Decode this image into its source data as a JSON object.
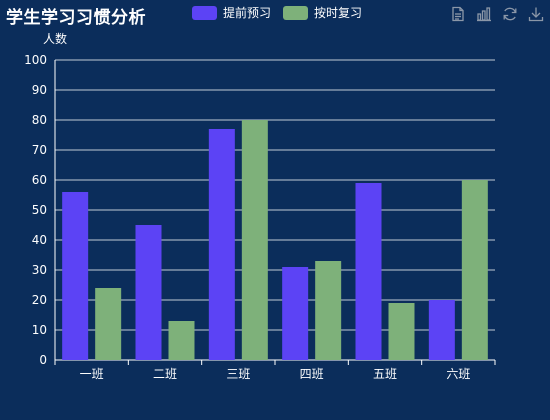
{
  "chart_data": {
    "type": "bar",
    "title": "学生学习习惯分析",
    "ylabel": "人数",
    "xlabel": "",
    "categories": [
      "一班",
      "二班",
      "三班",
      "四班",
      "五班",
      "六班"
    ],
    "series": [
      {
        "name": "提前预习",
        "color": "#5c43f5",
        "values": [
          56,
          45,
          77,
          31,
          59,
          20
        ]
      },
      {
        "name": "按时复习",
        "color": "#7eb17a",
        "values": [
          24,
          13,
          80,
          33,
          19,
          60
        ]
      }
    ],
    "ylim": [
      0,
      100
    ],
    "yticks": [
      0,
      10,
      20,
      30,
      40,
      50,
      60,
      70,
      80,
      90,
      100
    ],
    "grid": true,
    "legend_position": "top-center"
  },
  "toolbox": {
    "icons": [
      "data-view-icon",
      "bar-chart-icon",
      "restore-icon",
      "download-icon"
    ],
    "icon_color": "#8b97a8"
  },
  "colors": {
    "background": "#0b2d5b",
    "text": "#ffffff",
    "grid": "#ffffff"
  }
}
